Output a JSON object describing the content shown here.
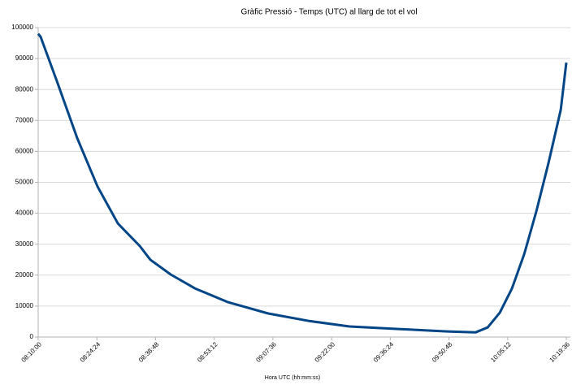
{
  "chart_data": {
    "type": "line",
    "title": "Gràfic Pressió - Temps (UTC) al llarg de tot el vol",
    "x_label": "Hora UTC (hh:mm:ss)",
    "x": [
      "08:10:00",
      "08:10:36",
      "08:14:35",
      "08:19:34",
      "08:24:34",
      "08:29:33",
      "08:34:56",
      "08:37:31",
      "08:42:31",
      "08:48:30",
      "08:56:28",
      "09:06:27",
      "09:16:25",
      "09:26:23",
      "09:38:21",
      "09:50:19",
      "09:57:18",
      "10:00:18",
      "10:03:17",
      "10:06:16",
      "10:09:16",
      "10:12:16",
      "10:15:15",
      "10:18:15",
      "10:19:36"
    ],
    "values": [
      98000,
      97000,
      82700,
      64300,
      48600,
      36700,
      29400,
      25000,
      20200,
      15700,
      11300,
      7600,
      5200,
      3400,
      2600,
      1800,
      1500,
      3100,
      7900,
      15700,
      26800,
      40700,
      56400,
      73500,
      88700
    ],
    "color": "#004586",
    "xlim": [
      "08:10:00",
      "10:19:36"
    ],
    "xticks": [
      "08:10:00",
      "08:24:24",
      "08:38:48",
      "08:53:12",
      "09:07:36",
      "09:22:00",
      "09:36:24",
      "09:50:48",
      "10:05:12",
      "10:19:36"
    ],
    "ylim": [
      0,
      100000
    ],
    "yticks": [
      0,
      10000,
      20000,
      30000,
      40000,
      50000,
      60000,
      70000,
      80000,
      90000,
      100000
    ],
    "grid": true
  }
}
